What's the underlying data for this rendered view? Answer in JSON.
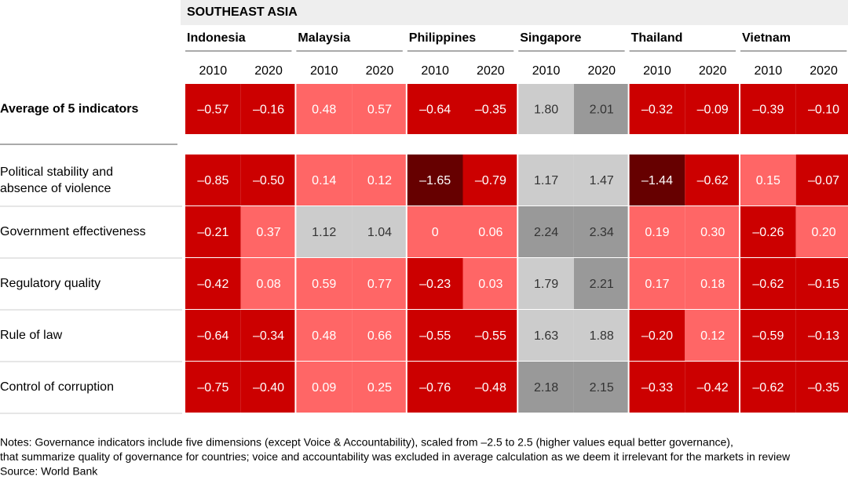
{
  "header": {
    "region": "SOUTHEAST ASIA"
  },
  "countries": [
    "Indonesia",
    "Malaysia",
    "Philippines",
    "Singapore",
    "Thailand",
    "Vietnam"
  ],
  "years": [
    "2010",
    "2020"
  ],
  "rows": [
    {
      "label": "Average of 5 indicators",
      "cells": [
        "–0.57",
        "–0.16",
        "0.48",
        "0.57",
        "–0.64",
        "–0.35",
        "1.80",
        "2.01",
        "–0.32",
        "–0.09",
        "–0.39",
        "–0.10"
      ],
      "colors": [
        "#cc0000",
        "#cc0000",
        "#ff6666",
        "#ff6666",
        "#cc0000",
        "#cc0000",
        "#cccccc",
        "#999999",
        "#cc0000",
        "#cc0000",
        "#cc0000",
        "#cc0000"
      ]
    },
    {
      "label": "Political stability and absence of violence",
      "cells": [
        "–0.85",
        "–0.50",
        "0.14",
        "0.12",
        "–1.65",
        "–0.79",
        "1.17",
        "1.47",
        "–1.44",
        "–0.62",
        "0.15",
        "–0.07"
      ],
      "colors": [
        "#cc0000",
        "#cc0000",
        "#ff6666",
        "#ff6666",
        "#660000",
        "#cc0000",
        "#cccccc",
        "#cccccc",
        "#660000",
        "#cc0000",
        "#ff6666",
        "#cc0000"
      ]
    },
    {
      "label": "Government effectiveness",
      "cells": [
        "–0.21",
        "0.37",
        "1.12",
        "1.04",
        "0",
        "0.06",
        "2.24",
        "2.34",
        "0.19",
        "0.30",
        "–0.26",
        "0.20"
      ],
      "colors": [
        "#cc0000",
        "#ff6666",
        "#cccccc",
        "#cccccc",
        "#ff6666",
        "#ff6666",
        "#999999",
        "#999999",
        "#ff6666",
        "#ff6666",
        "#cc0000",
        "#ff6666"
      ]
    },
    {
      "label": "Regulatory quality",
      "cells": [
        "–0.42",
        "0.08",
        "0.59",
        "0.77",
        "–0.23",
        "0.03",
        "1.79",
        "2.21",
        "0.17",
        "0.18",
        "–0.62",
        "–0.15"
      ],
      "colors": [
        "#cc0000",
        "#ff6666",
        "#ff6666",
        "#ff6666",
        "#cc0000",
        "#ff6666",
        "#cccccc",
        "#999999",
        "#ff6666",
        "#ff6666",
        "#cc0000",
        "#cc0000"
      ]
    },
    {
      "label": "Rule of law",
      "cells": [
        "–0.64",
        "–0.34",
        "0.48",
        "0.66",
        "–0.55",
        "–0.55",
        "1.63",
        "1.88",
        "–0.20",
        "0.12",
        "–0.59",
        "–0.13"
      ],
      "colors": [
        "#cc0000",
        "#cc0000",
        "#ff6666",
        "#ff6666",
        "#cc0000",
        "#cc0000",
        "#cccccc",
        "#cccccc",
        "#cc0000",
        "#ff6666",
        "#cc0000",
        "#cc0000"
      ]
    },
    {
      "label": "Control of corruption",
      "cells": [
        "–0.75",
        "–0.40",
        "0.09",
        "0.25",
        "–0.76",
        "–0.48",
        "2.18",
        "2.15",
        "–0.33",
        "–0.42",
        "–0.62",
        "–0.35"
      ],
      "colors": [
        "#cc0000",
        "#cc0000",
        "#ff6666",
        "#ff6666",
        "#cc0000",
        "#cc0000",
        "#999999",
        "#999999",
        "#cc0000",
        "#cc0000",
        "#cc0000",
        "#cc0000"
      ]
    }
  ],
  "notes": [
    "Notes: Governance indicators include five dimensions (except Voice & Accountability), scaled from –2.5 to 2.5 (higher values equal better governance),",
    "that summarize quality of governance for countries; voice and accountability was excluded in average calculation as we deem it irrelevant for the markets in review",
    "Source: World Bank"
  ]
}
